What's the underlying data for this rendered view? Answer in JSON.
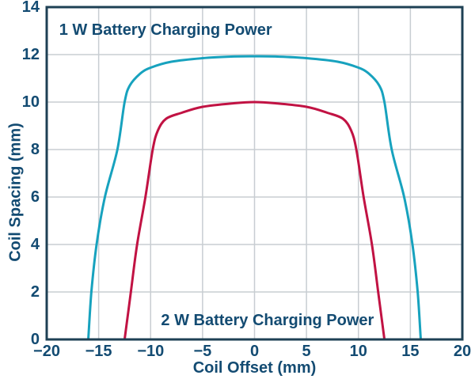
{
  "chart_data": {
    "type": "line",
    "title": "",
    "xlabel": "Coil Offset (mm)",
    "ylabel": "Coil Spacing (mm)",
    "xlim": [
      -20,
      20
    ],
    "ylim": [
      0,
      14
    ],
    "grid": true,
    "legend_position": "labels-inside-plot",
    "x_tick_values": [
      -20,
      -15,
      -10,
      -5,
      0,
      5,
      10,
      15,
      20
    ],
    "x_tick_labels": [
      "−20",
      "−15",
      "−10",
      "−5",
      "0",
      "5",
      "10",
      "15",
      "20"
    ],
    "y_tick_values": [
      0,
      2,
      4,
      6,
      8,
      10,
      12,
      14
    ],
    "y_tick_labels": [
      "0",
      "2",
      "4",
      "6",
      "8",
      "10",
      "12",
      "14"
    ],
    "series": [
      {
        "name": "1 W Battery Charging Power",
        "color": "#17A2BE",
        "x": [
          -16,
          -15.7,
          -15.2,
          -14.4,
          -13.2,
          -12.5,
          -12,
          -11,
          -10,
          -8,
          -5,
          -2,
          0,
          2,
          5,
          8,
          10,
          11,
          12,
          12.5,
          13.2,
          14.4,
          15.2,
          15.7,
          16
        ],
        "y": [
          0,
          2,
          4,
          6,
          8,
          10,
          10.7,
          11.2,
          11.45,
          11.7,
          11.85,
          11.92,
          11.93,
          11.92,
          11.85,
          11.7,
          11.45,
          11.2,
          10.7,
          10,
          8,
          6,
          4,
          2,
          0
        ]
      },
      {
        "name": "2 W Battery Charging Power",
        "color": "#C11243",
        "x": [
          -12.5,
          -11.9,
          -11.3,
          -10.5,
          -9.8,
          -9.3,
          -8.5,
          -7,
          -5,
          -2,
          0,
          2,
          5,
          7,
          8.5,
          9.3,
          9.8,
          10.5,
          11.3,
          11.9,
          12.5
        ],
        "y": [
          0,
          2,
          4,
          6,
          8,
          8.8,
          9.3,
          9.55,
          9.8,
          9.95,
          10,
          9.95,
          9.8,
          9.55,
          9.3,
          8.8,
          8,
          6,
          4,
          2,
          0
        ]
      }
    ],
    "annotations": [
      {
        "text": "1 W Battery Charging Power",
        "x": -18.8,
        "y": 13.03
      },
      {
        "text": "2 W Battery Charging Power",
        "x": -9.0,
        "y": 0.8
      }
    ]
  },
  "colors": {
    "text": "#134B72",
    "frame": "#1E4054",
    "grid": "#C8CDD2",
    "background": "#FFFFFF",
    "series_1w": "#17A2BE",
    "series_2w": "#C11243"
  }
}
